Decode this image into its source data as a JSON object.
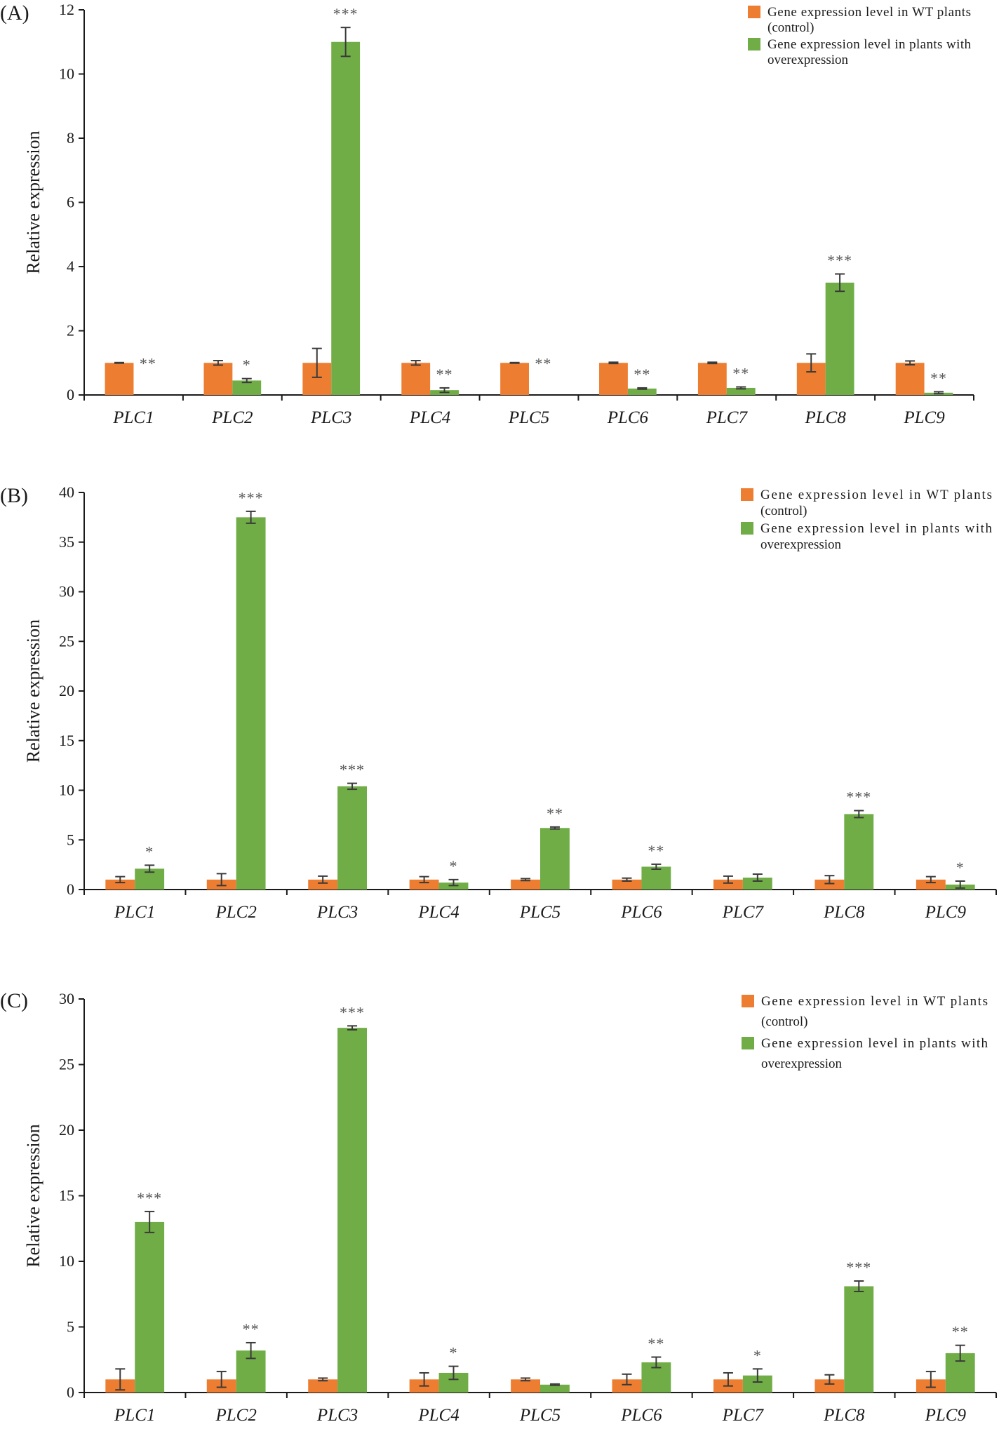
{
  "colors": {
    "control": "#ED7D31",
    "overexpression": "#70AD47"
  },
  "chart_data": [
    {
      "type": "bar",
      "panel_label": "(A)",
      "categories": [
        "PLC1",
        "PLC2",
        "PLC3",
        "PLC4",
        "PLC5",
        "PLC6",
        "PLC7",
        "PLC8",
        "PLC9"
      ],
      "ylabel": "Relative expression",
      "ylim": [
        0,
        12
      ],
      "yticks": [
        "0",
        "2",
        "4",
        "6",
        "8",
        "10",
        "12"
      ],
      "legend_position": "top-right",
      "legend": [
        "Gene expression level in WT plants (control)",
        "Gene expression level in plants with overexpression"
      ],
      "series": [
        {
          "name": "Gene expression level in WT plants (control)",
          "values": [
            1.0,
            1.0,
            1.0,
            1.0,
            1.0,
            1.0,
            1.0,
            1.0,
            1.0
          ],
          "errors": [
            0.01,
            0.07,
            0.45,
            0.07,
            0.01,
            0.02,
            0.02,
            0.28,
            0.06
          ]
        },
        {
          "name": "Gene expression level in plants with overexpression",
          "values": [
            0.0,
            0.45,
            11.0,
            0.15,
            0.0,
            0.2,
            0.22,
            3.5,
            0.07
          ],
          "errors": [
            0,
            0.06,
            0.45,
            0.07,
            0,
            0.02,
            0.03,
            0.27,
            0.03
          ]
        }
      ],
      "significance": [
        "**",
        "*",
        "***",
        "**",
        "**",
        "**",
        "**",
        "***",
        "**"
      ]
    },
    {
      "type": "bar",
      "panel_label": "(B)",
      "categories": [
        "PLC1",
        "PLC2",
        "PLC3",
        "PLC4",
        "PLC5",
        "PLC6",
        "PLC7",
        "PLC8",
        "PLC9"
      ],
      "ylabel": "Relative expression",
      "ylim": [
        0,
        40
      ],
      "yticks": [
        "0",
        "5",
        "10",
        "15",
        "20",
        "25",
        "30",
        "35",
        "40"
      ],
      "legend_position": "top-right",
      "legend": [
        "Gene expression level in WT plants (control)",
        "Gene expression level in plants with overexpression"
      ],
      "series": [
        {
          "name": "Gene expression level in WT plants (control)",
          "values": [
            1.0,
            1.0,
            1.0,
            1.0,
            1.0,
            1.0,
            1.0,
            1.0,
            1.0
          ],
          "errors": [
            0.3,
            0.6,
            0.35,
            0.3,
            0.1,
            0.15,
            0.35,
            0.4,
            0.3
          ]
        },
        {
          "name": "Gene expression level in plants with overexpression",
          "values": [
            2.1,
            37.5,
            10.4,
            0.7,
            6.2,
            2.3,
            1.2,
            7.6,
            0.5
          ],
          "errors": [
            0.35,
            0.6,
            0.3,
            0.3,
            0.1,
            0.25,
            0.35,
            0.35,
            0.35
          ]
        }
      ],
      "significance": [
        "*",
        "***",
        "***",
        "*",
        "**",
        "**",
        "",
        "***",
        "*"
      ]
    },
    {
      "type": "bar",
      "panel_label": "(C)",
      "categories": [
        "PLC1",
        "PLC2",
        "PLC3",
        "PLC4",
        "PLC5",
        "PLC6",
        "PLC7",
        "PLC8",
        "PLC9"
      ],
      "ylabel": "Relative expression",
      "ylim": [
        0,
        30
      ],
      "yticks": [
        "0",
        "5",
        "10",
        "15",
        "20",
        "25",
        "30"
      ],
      "legend_position": "top-right",
      "legend": [
        "Gene expression level in WT plants (control)",
        "Gene expression level in plants with overexpression"
      ],
      "series": [
        {
          "name": "Gene expression level in WT plants (control)",
          "values": [
            1.0,
            1.0,
            1.0,
            1.0,
            1.0,
            1.0,
            1.0,
            1.0,
            1.0
          ],
          "errors": [
            0.8,
            0.6,
            0.1,
            0.5,
            0.1,
            0.4,
            0.5,
            0.35,
            0.6
          ]
        },
        {
          "name": "Gene expression level in plants with overexpression",
          "values": [
            13.0,
            3.2,
            27.8,
            1.5,
            0.6,
            2.3,
            1.3,
            8.1,
            3.0
          ],
          "errors": [
            0.8,
            0.6,
            0.15,
            0.5,
            0.05,
            0.4,
            0.5,
            0.4,
            0.6
          ]
        }
      ],
      "significance": [
        "***",
        "**",
        "***",
        "*",
        "",
        "**",
        "*",
        "***",
        "**"
      ]
    }
  ]
}
